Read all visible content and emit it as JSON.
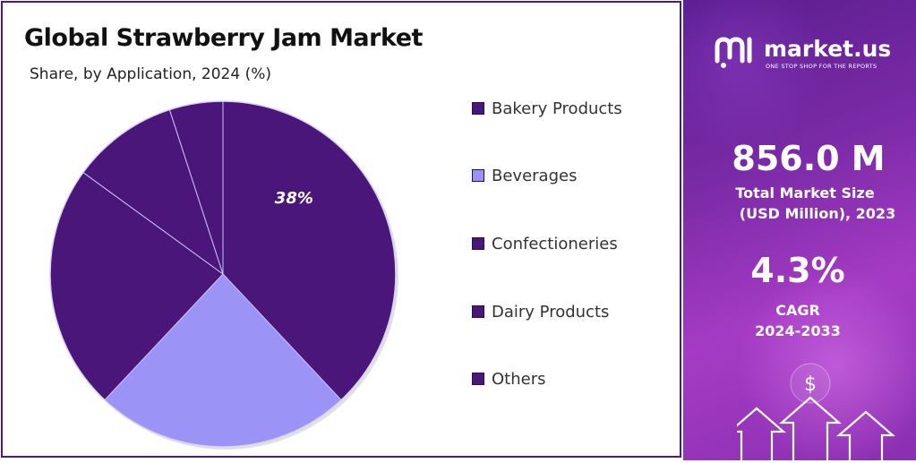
{
  "chart_data": {
    "type": "pie",
    "title": "Global Strawberry Jam Market",
    "subtitle": "Share, by Application, 2024 (%)",
    "categories": [
      "Bakery Products",
      "Beverages",
      "Confectioneries",
      "Dairy Products",
      "Others"
    ],
    "values": [
      38,
      24,
      23,
      10,
      5
    ],
    "data_labels": [
      "38%",
      "",
      "",
      "",
      ""
    ],
    "colors": [
      "#4b167a",
      "#9b93f5",
      "#4b167a",
      "#4b167a",
      "#4b167a"
    ],
    "legend_position": "right"
  },
  "brand": {
    "name": "market.us",
    "tagline": "ONE STOP SHOP FOR THE REPORTS",
    "logo_icon": "market-us-logo-icon"
  },
  "stats": {
    "market_size_value": "856.0 M",
    "market_size_label_line1": "Total Market Size",
    "market_size_label_line2": "(USD Million), 2023",
    "cagr_value": "4.3%",
    "cagr_label_line1": "CAGR",
    "cagr_label_line2": "2024-2033"
  },
  "decor": {
    "dollar_symbol": "$",
    "arrow_icon": "up-arrow-icon"
  }
}
